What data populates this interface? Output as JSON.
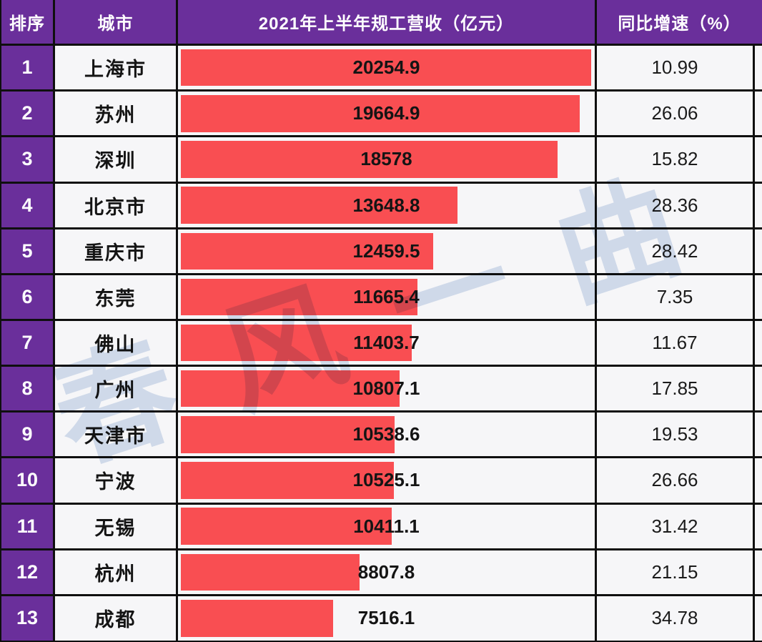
{
  "header": {
    "rank": "排序",
    "city": "城市",
    "revenue": "2021年上半年规工营收（亿元）",
    "growth": "同比增速（%）"
  },
  "rows": [
    {
      "rank": "1",
      "city": "上海市",
      "revenue": "20254.9",
      "growth": "10.99"
    },
    {
      "rank": "2",
      "city": "苏州",
      "revenue": "19664.9",
      "growth": "26.06"
    },
    {
      "rank": "3",
      "city": "深圳",
      "revenue": "18578",
      "growth": "15.82"
    },
    {
      "rank": "4",
      "city": "北京市",
      "revenue": "13648.8",
      "growth": "28.36"
    },
    {
      "rank": "5",
      "city": "重庆市",
      "revenue": "12459.5",
      "growth": "28.42"
    },
    {
      "rank": "6",
      "city": "东莞",
      "revenue": "11665.4",
      "growth": "7.35"
    },
    {
      "rank": "7",
      "city": "佛山",
      "revenue": "11403.7",
      "growth": "11.67"
    },
    {
      "rank": "8",
      "city": "广州",
      "revenue": "10807.1",
      "growth": "17.85"
    },
    {
      "rank": "9",
      "city": "天津市",
      "revenue": "10538.6",
      "growth": "19.53"
    },
    {
      "rank": "10",
      "city": "宁波",
      "revenue": "10525.1",
      "growth": "26.66"
    },
    {
      "rank": "11",
      "city": "无锡",
      "revenue": "10411.1",
      "growth": "31.42"
    },
    {
      "rank": "12",
      "city": "杭州",
      "revenue": "8807.8",
      "growth": "21.15"
    },
    {
      "rank": "13",
      "city": "成都",
      "revenue": "7516.1",
      "growth": "34.78"
    }
  ],
  "watermark": {
    "text": "春风一曲"
  },
  "colors": {
    "header_purple": "#6A2F9B",
    "bar_red": "#F94E52",
    "cell_white": "#F6F6F8",
    "border_black": "#0F0F0F",
    "watermark_blue": "#B6C9E3"
  },
  "chart_data": {
    "type": "bar",
    "orientation": "horizontal",
    "title": "2021年上半年规工营收（亿元）",
    "categories": [
      "上海市",
      "苏州",
      "深圳",
      "北京市",
      "重庆市",
      "东莞",
      "佛山",
      "广州",
      "天津市",
      "宁波",
      "无锡",
      "杭州",
      "成都"
    ],
    "series": [
      {
        "name": "2021年上半年规工营收（亿元）",
        "values": [
          20254.9,
          19664.9,
          18578,
          13648.8,
          12459.5,
          11665.4,
          11403.7,
          10807.1,
          10538.6,
          10525.1,
          10411.1,
          8807.8,
          7516.1
        ]
      },
      {
        "name": "同比增速（%）",
        "values": [
          10.99,
          26.06,
          15.82,
          28.36,
          28.42,
          7.35,
          11.67,
          17.85,
          19.53,
          26.66,
          31.42,
          21.15,
          34.78
        ]
      }
    ],
    "xlim": [
      0,
      20254.9
    ],
    "grid": false,
    "legend_position": "none",
    "value_labels": "centered-in-cell"
  }
}
